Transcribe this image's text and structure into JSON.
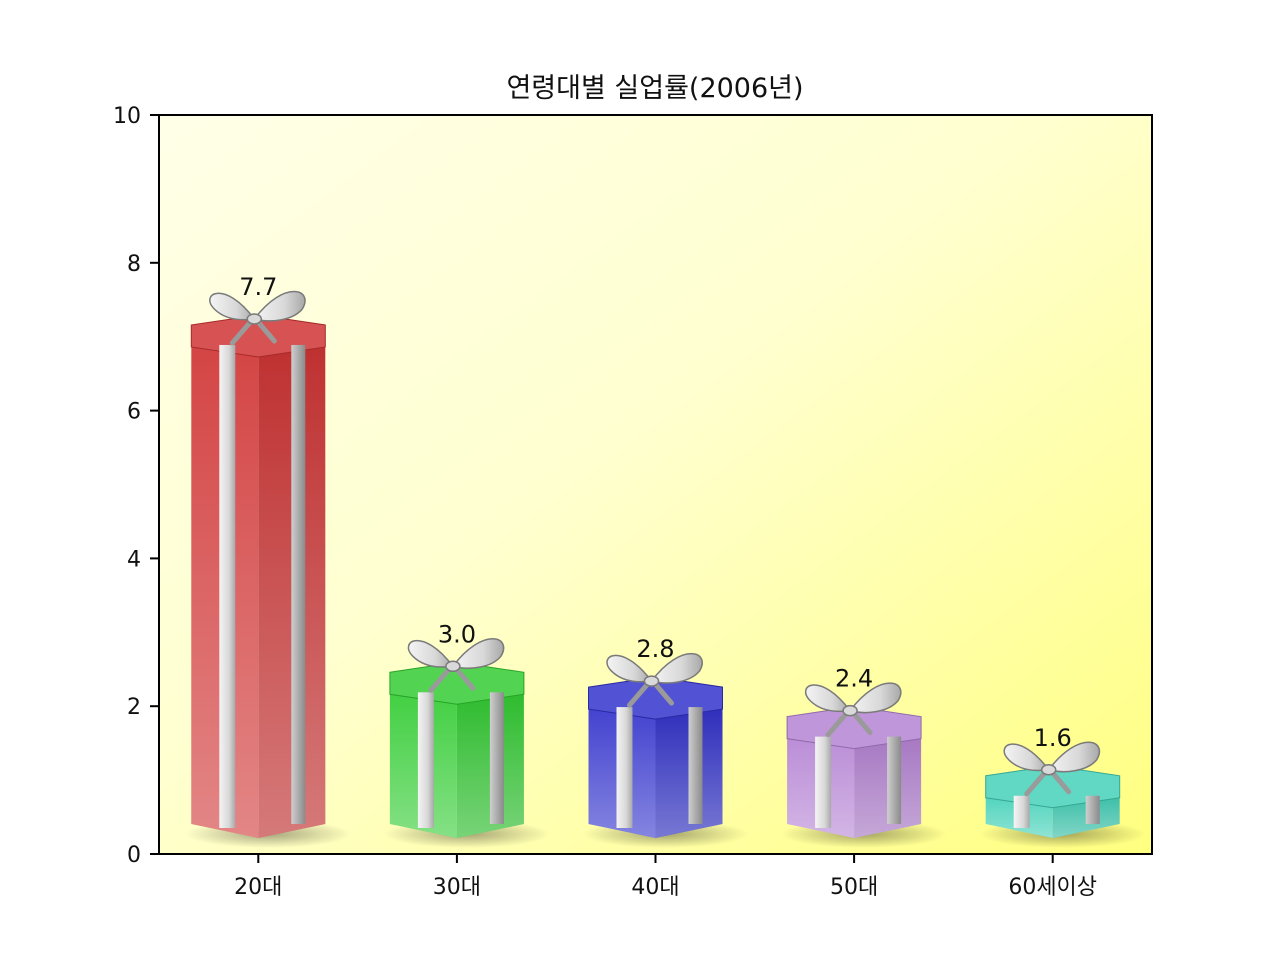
{
  "chart_data": {
    "type": "bar",
    "title": "연령대별 실업률(2006년)",
    "xlabel": "",
    "ylabel": "",
    "categories": [
      "20대",
      "30대",
      "40대",
      "50대",
      "60세이상"
    ],
    "values": [
      7.7,
      3.0,
      2.8,
      2.4,
      1.6
    ],
    "value_labels": [
      "7.7",
      "3.0",
      "2.8",
      "2.4",
      "1.6"
    ],
    "ylim": [
      0,
      10
    ],
    "yticks": [
      "0",
      "2",
      "4",
      "6",
      "8",
      "10"
    ],
    "grid": false,
    "bar_style": "gift-box",
    "colors": [
      "#d03535",
      "#33cc33",
      "#3333cc",
      "#b584d4",
      "#45d1b8"
    ],
    "ribbon_color": "#c0c0c0",
    "background_gradient": [
      "#ffffe0",
      "#ffff80"
    ]
  }
}
